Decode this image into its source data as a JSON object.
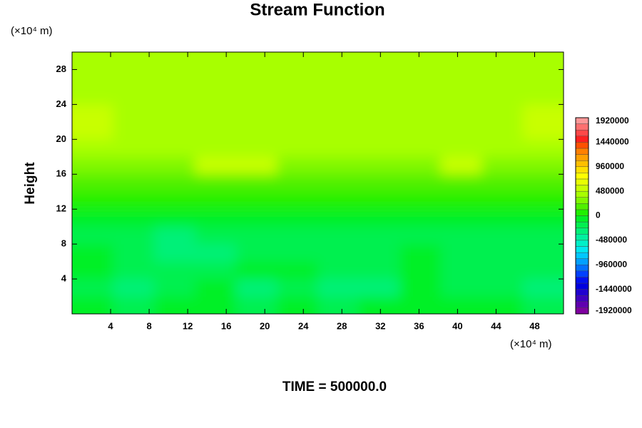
{
  "chart_data": {
    "type": "contour",
    "title": "Stream Function",
    "ylabel": "Height",
    "yunit": "(×10⁴ m)",
    "xunit": "(×10⁴ m)",
    "footer": "TIME = 500000.0",
    "xlim": [
      0,
      51
    ],
    "ylim": [
      0,
      30
    ],
    "xticks": [
      4,
      8,
      12,
      16,
      20,
      24,
      28,
      32,
      36,
      40,
      44,
      48
    ],
    "yticks": [
      4,
      8,
      12,
      16,
      20,
      24,
      28
    ],
    "x": [
      2.1,
      6.4,
      10.6,
      14.9,
      19.1,
      23.4,
      27.6,
      31.9,
      36.1,
      40.4,
      44.6,
      48.9
    ],
    "y": [
      1,
      3,
      5,
      7,
      9,
      11,
      13,
      15,
      17,
      19,
      21,
      23,
      25,
      27,
      29
    ],
    "z": [
      [
        -100000,
        -150000,
        -100000,
        -50000,
        -150000,
        -100000,
        -150000,
        -100000,
        -50000,
        -100000,
        -100000,
        -150000
      ],
      [
        -150000,
        -250000,
        -150000,
        -100000,
        -250000,
        -150000,
        -250000,
        -280000,
        -100000,
        -150000,
        -200000,
        -280000
      ],
      [
        -100000,
        -150000,
        -200000,
        -150000,
        -100000,
        -120000,
        -200000,
        -150000,
        -100000,
        -150000,
        -150000,
        -200000
      ],
      [
        -120000,
        -150000,
        -250000,
        -250000,
        -180000,
        -130000,
        -150000,
        -150000,
        -120000,
        -150000,
        -150000,
        -150000
      ],
      [
        -150000,
        -180000,
        -250000,
        -220000,
        -180000,
        -150000,
        -170000,
        -150000,
        -150000,
        -200000,
        -200000,
        -170000
      ],
      [
        -30000,
        -50000,
        -80000,
        -60000,
        -50000,
        -50000,
        -60000,
        -40000,
        -50000,
        -70000,
        -60000,
        -50000
      ],
      [
        50000,
        60000,
        80000,
        70000,
        60000,
        60000,
        70000,
        50000,
        60000,
        50000,
        60000,
        50000
      ],
      [
        200000,
        180000,
        200000,
        220000,
        200000,
        190000,
        200000,
        180000,
        200000,
        220000,
        180000,
        200000
      ],
      [
        330000,
        330000,
        350000,
        500000,
        490000,
        330000,
        340000,
        330000,
        350000,
        500000,
        330000,
        340000
      ],
      [
        380000,
        400000,
        380000,
        370000,
        380000,
        360000,
        370000,
        380000,
        400000,
        390000,
        380000,
        380000
      ],
      [
        500000,
        420000,
        410000,
        400000,
        410000,
        420000,
        400000,
        410000,
        400000,
        420000,
        410000,
        500000
      ],
      [
        500000,
        380000,
        370000,
        370000,
        380000,
        380000,
        370000,
        370000,
        370000,
        370000,
        380000,
        500000
      ],
      [
        380000,
        380000,
        380000,
        380000,
        380000,
        380000,
        380000,
        380000,
        380000,
        380000,
        380000,
        380000
      ],
      [
        380000,
        380000,
        380000,
        380000,
        380000,
        380000,
        380000,
        380000,
        380000,
        380000,
        380000,
        380000
      ],
      [
        380000,
        380000,
        380000,
        380000,
        380000,
        380000,
        380000,
        380000,
        380000,
        380000,
        380000,
        380000
      ]
    ],
    "clim": [
      -1920000,
      1920000
    ],
    "cticks": [
      -1920000,
      -1440000,
      -960000,
      -480000,
      0,
      480000,
      960000,
      1440000,
      1920000
    ],
    "colors": [
      "#7f00a0",
      "#6000b0",
      "#4000c0",
      "#2000d0",
      "#0000e0",
      "#0010f0",
      "#0040ff",
      "#0070ff",
      "#00a0ff",
      "#00c8ff",
      "#00e8f0",
      "#00f0c8",
      "#00f0a0",
      "#00f078",
      "#00f050",
      "#00f028",
      "#20f000",
      "#50f000",
      "#80f800",
      "#a8ff00",
      "#c8ff00",
      "#e8ff00",
      "#ffff00",
      "#ffe000",
      "#ffc000",
      "#ffa000",
      "#ff8000",
      "#ff5000",
      "#ff2020",
      "#ff4848",
      "#ff7070",
      "#ff9898"
    ]
  }
}
